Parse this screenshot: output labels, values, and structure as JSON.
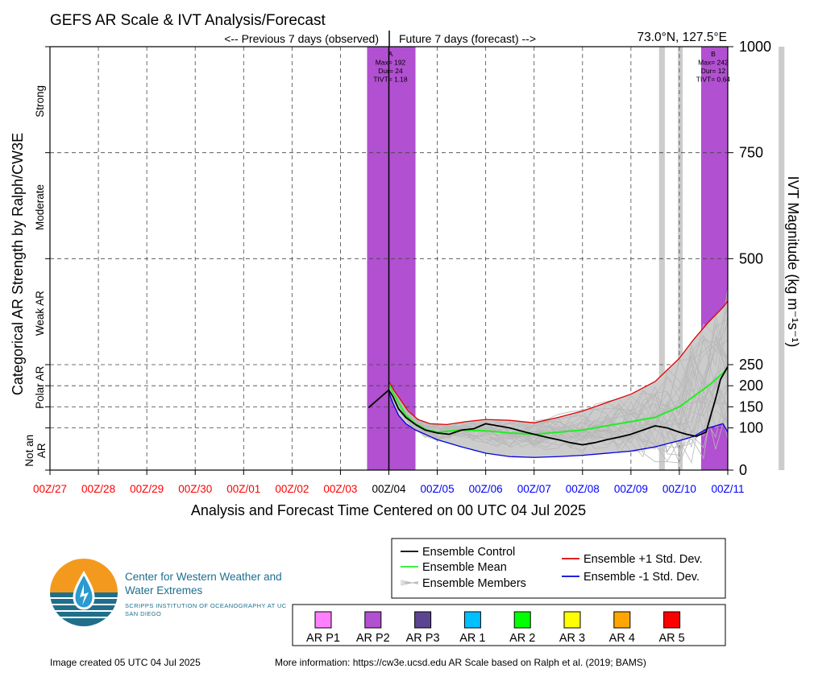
{
  "title": "GEFS AR Scale & IVT Analysis/Forecast",
  "previous_label": "<-- Previous 7 days (observed)",
  "future_label": "Future 7 days (forecast) -->",
  "location": "73.0°N, 127.5°E",
  "colors": {
    "observed": "#ff0000",
    "forecast": "#0000ff",
    "ar_p2": "#b150d0",
    "control": "#000000",
    "mean": "#22ee22",
    "plus_sd": "#dd0000",
    "minus_sd": "#0000dd",
    "members": "#b8b8b8",
    "spread": "#cccccc"
  },
  "chart_data": {
    "type": "line",
    "xlabel": "Analysis and Forecast Time Centered on 00 UTC 04 Jul 2025",
    "ylabel_left": "Categorical AR Strength by Ralph/CW3E",
    "ylabel_right": "IVT Magnitude (kg m⁻¹s⁻¹)",
    "x_ticks": [
      "00Z/27",
      "00Z/28",
      "00Z/29",
      "00Z/30",
      "00Z/01",
      "00Z/02",
      "00Z/03",
      "00Z/04",
      "00Z/05",
      "00Z/06",
      "00Z/07",
      "00Z/08",
      "00Z/09",
      "00Z/10",
      "00Z/11"
    ],
    "x_tick_status": [
      "observed",
      "observed",
      "observed",
      "observed",
      "observed",
      "observed",
      "observed",
      "now",
      "forecast",
      "forecast",
      "forecast",
      "forecast",
      "forecast",
      "forecast",
      "forecast"
    ],
    "xlim_days": [
      -7,
      7
    ],
    "y_ticks": [
      0,
      100,
      150,
      200,
      250,
      500,
      750,
      1000
    ],
    "ylim": [
      0,
      1000
    ],
    "y_gridlines": [
      100,
      150,
      200,
      250,
      500,
      750
    ],
    "ar_categories": [
      {
        "label": "Not an AR",
        "lines": [
          "Not an",
          "AR"
        ],
        "ymin": 0,
        "ymax": 100
      },
      {
        "label": "Polar AR",
        "lines": [
          "Polar AR"
        ],
        "ymin": 150,
        "ymax": 250
      },
      {
        "label": "Weak AR",
        "lines": [
          "Weak AR"
        ],
        "ymin": 250,
        "ymax": 500
      },
      {
        "label": "Moderate",
        "lines": [
          "Moderate"
        ],
        "ymin": 500,
        "ymax": 750
      },
      {
        "label": "Strong",
        "lines": [
          "Strong"
        ],
        "ymin": 750,
        "ymax": 1000
      }
    ],
    "ar_events": [
      {
        "label": "A",
        "lines": [
          "A",
          "Max= 192",
          "Dur= 24",
          "TIVT= 1.18"
        ],
        "start": -0.45,
        "end": 0.55
      },
      {
        "label": "B",
        "lines": [
          "B",
          "Max= 242",
          "Dur= 12",
          "TIVT= 0.64"
        ],
        "start": 6.45,
        "end": 7.0
      }
    ],
    "gray_bars": [
      [
        5.58,
        5.7
      ],
      [
        5.97,
        6.07
      ],
      [
        8.05,
        8.17
      ]
    ],
    "series": [
      {
        "name": "Ensemble Control",
        "x": [
          -0.42,
          0,
          0.08,
          0.2,
          0.35,
          0.55,
          0.75,
          1.0,
          1.25,
          1.5,
          1.75,
          2.0,
          2.25,
          2.5,
          2.75,
          3.0,
          3.25,
          3.5,
          3.75,
          4.0,
          4.25,
          4.5,
          4.75,
          5.0,
          5.25,
          5.5,
          5.75,
          6.0,
          6.15,
          6.35,
          6.55,
          6.75,
          6.85,
          7.0
        ],
        "values": [
          148,
          190,
          175,
          145,
          125,
          108,
          95,
          88,
          85,
          95,
          98,
          110,
          105,
          100,
          92,
          85,
          78,
          72,
          65,
          60,
          65,
          72,
          78,
          85,
          95,
          105,
          100,
          90,
          85,
          80,
          90,
          170,
          215,
          245
        ]
      },
      {
        "name": "Ensemble Mean",
        "x": [
          0,
          0.08,
          0.2,
          0.35,
          0.55,
          0.75,
          1.0,
          1.5,
          2.0,
          2.5,
          3.0,
          3.5,
          4.0,
          4.5,
          5.0,
          5.5,
          6.0,
          6.3,
          6.6,
          6.9,
          7.0
        ],
        "values": [
          205,
          185,
          160,
          130,
          110,
          97,
          90,
          95,
          93,
          88,
          85,
          90,
          95,
          105,
          115,
          125,
          150,
          175,
          200,
          230,
          245
        ]
      },
      {
        "name": "Ensemble +1 Std. Dev.",
        "x": [
          0,
          0.1,
          0.25,
          0.4,
          0.6,
          0.85,
          1.2,
          1.6,
          2.0,
          2.5,
          3.0,
          3.5,
          4.0,
          4.5,
          5.0,
          5.5,
          6.0,
          6.3,
          6.6,
          6.9,
          7.0
        ],
        "values": [
          210,
          190,
          165,
          140,
          120,
          110,
          108,
          115,
          120,
          118,
          112,
          125,
          140,
          160,
          180,
          210,
          265,
          310,
          350,
          385,
          400
        ]
      },
      {
        "name": "Ensemble -1 Std. Dev.",
        "x": [
          0,
          0.08,
          0.2,
          0.35,
          0.55,
          0.75,
          1.0,
          1.5,
          2.0,
          2.5,
          3.0,
          3.5,
          4.0,
          4.5,
          5.0,
          5.5,
          6.0,
          6.3,
          6.6,
          6.9,
          7.0
        ],
        "values": [
          185,
          160,
          130,
          110,
          95,
          85,
          72,
          55,
          40,
          32,
          30,
          32,
          35,
          40,
          45,
          55,
          70,
          80,
          100,
          110,
          90
        ]
      }
    ],
    "members_count": 30,
    "legend": [
      {
        "name": "Ensemble Control",
        "style": "line"
      },
      {
        "name": "Ensemble Mean",
        "style": "line"
      },
      {
        "name": "Ensemble Members",
        "style": "members"
      },
      {
        "name": "Ensemble +1 Std. Dev.",
        "style": "line"
      },
      {
        "name": "Ensemble -1 Std. Dev.",
        "style": "line"
      }
    ]
  },
  "scale_legend": [
    {
      "label": "AR P1",
      "color": "#ff80ff"
    },
    {
      "label": "AR P2",
      "color": "#b150d0"
    },
    {
      "label": "AR P3",
      "color": "#5c4590"
    },
    {
      "label": "AR 1",
      "color": "#00bfff"
    },
    {
      "label": "AR 2",
      "color": "#00ff00"
    },
    {
      "label": "AR 3",
      "color": "#ffff00"
    },
    {
      "label": "AR 4",
      "color": "#ffa500"
    },
    {
      "label": "AR 5",
      "color": "#ff0000"
    }
  ],
  "logo": {
    "title": "Center for Western Weather and Water Extremes",
    "subtitle": "SCRIPPS INSTITUTION OF OCEANOGRAPHY AT UC SAN DIEGO"
  },
  "footer": {
    "created": "Image created 05 UTC 04 Jul 2025",
    "more_info": "More information: https://cw3e.ucsd.edu AR Scale based on Ralph et al. (2019; BAMS)"
  }
}
